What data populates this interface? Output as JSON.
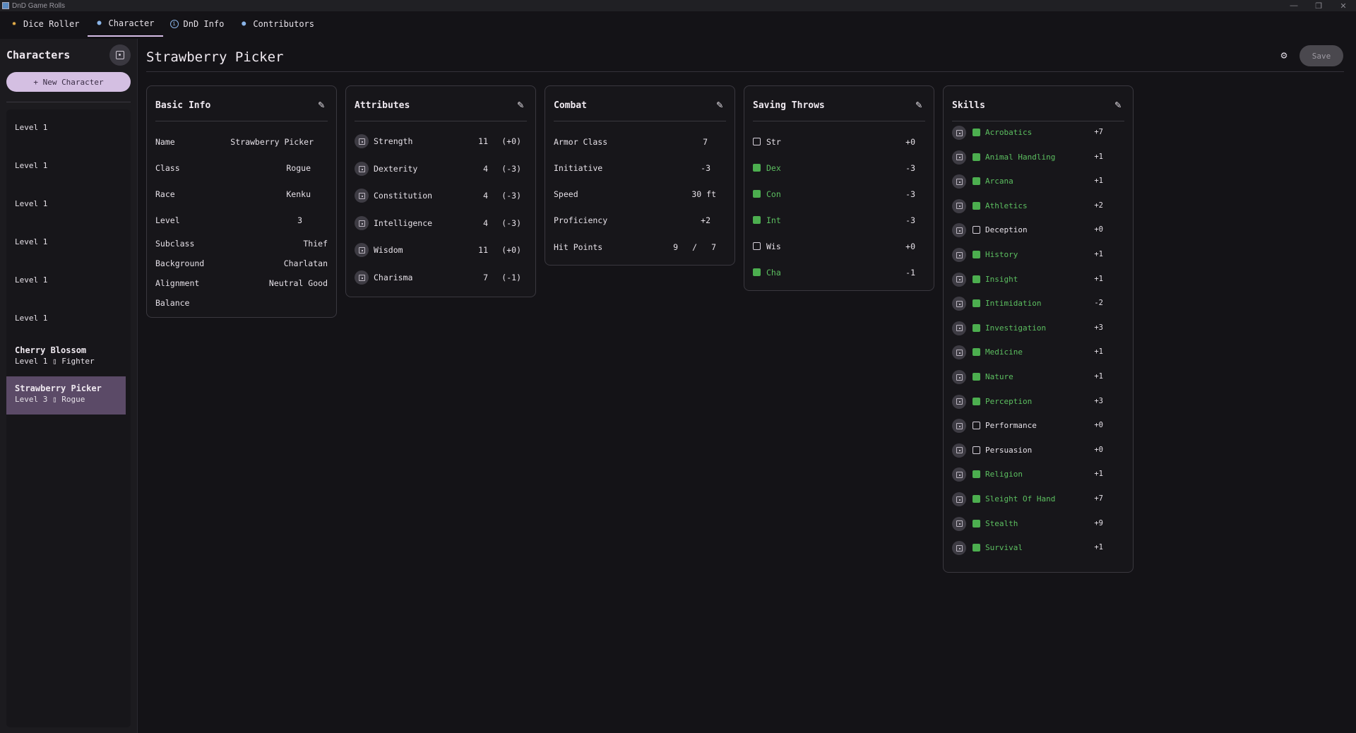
{
  "window": {
    "title": "DnD Game Rolls"
  },
  "tabs": [
    {
      "label": "Dice Roller",
      "icon": "dice-icon"
    },
    {
      "label": "Character",
      "icon": "person-icon",
      "active": true
    },
    {
      "label": "DnD Info",
      "icon": "info-icon"
    },
    {
      "label": "Contributors",
      "icon": "person-icon"
    }
  ],
  "sidebar": {
    "title": "Characters",
    "new_button": "+ New Character",
    "characters": [
      {
        "name": "",
        "sub": "Level 1"
      },
      {
        "name": "",
        "sub": "Level 1"
      },
      {
        "name": "",
        "sub": "Level 1"
      },
      {
        "name": "",
        "sub": "Level 1"
      },
      {
        "name": "",
        "sub": "Level 1"
      },
      {
        "name": "",
        "sub": "Level 1"
      },
      {
        "name": "Cherry Blossom",
        "sub": "Level 1 ▯ Fighter"
      },
      {
        "name": "Strawberry Picker",
        "sub": "Level 3 ▯ Rogue",
        "selected": true
      }
    ]
  },
  "main": {
    "title": "Strawberry Picker",
    "save_label": "Save"
  },
  "basic_info": {
    "title": "Basic Info",
    "rows": [
      {
        "label": "Name",
        "value": "Strawberry Picker"
      },
      {
        "label": "Class",
        "value": "Rogue"
      },
      {
        "label": "Race",
        "value": "Kenku"
      },
      {
        "label": "Level",
        "value": "3"
      },
      {
        "label": "Subclass",
        "value": "Thief"
      },
      {
        "label": "Background",
        "value": "Charlatan"
      },
      {
        "label": "Alignment",
        "value": "Neutral Good"
      },
      {
        "label": "Balance",
        "value": ""
      }
    ]
  },
  "attributes": {
    "title": "Attributes",
    "rows": [
      {
        "label": "Strength",
        "score": "11",
        "mod": "(+0)"
      },
      {
        "label": "Dexterity",
        "score": "4",
        "mod": "(-3)"
      },
      {
        "label": "Constitution",
        "score": "4",
        "mod": "(-3)"
      },
      {
        "label": "Intelligence",
        "score": "4",
        "mod": "(-3)"
      },
      {
        "label": "Wisdom",
        "score": "11",
        "mod": "(+0)"
      },
      {
        "label": "Charisma",
        "score": "7",
        "mod": "(-1)"
      }
    ]
  },
  "combat": {
    "title": "Combat",
    "rows": [
      {
        "label": "Armor Class",
        "value": "7"
      },
      {
        "label": "Initiative",
        "value": "-3"
      },
      {
        "label": "Speed",
        "value": "30 ft"
      },
      {
        "label": "Proficiency",
        "value": "+2"
      }
    ],
    "hit_points": {
      "label": "Hit Points",
      "current": "9",
      "sep": "/",
      "max": "7"
    }
  },
  "saving_throws": {
    "title": "Saving Throws",
    "rows": [
      {
        "label": "Str",
        "value": "+0",
        "proficient": false
      },
      {
        "label": "Dex",
        "value": "-3",
        "proficient": true
      },
      {
        "label": "Con",
        "value": "-3",
        "proficient": true
      },
      {
        "label": "Int",
        "value": "-3",
        "proficient": true
      },
      {
        "label": "Wis",
        "value": "+0",
        "proficient": false
      },
      {
        "label": "Cha",
        "value": "-1",
        "proficient": true
      }
    ]
  },
  "skills": {
    "title": "Skills",
    "rows": [
      {
        "label": "Acrobatics",
        "value": "+7",
        "proficient": true
      },
      {
        "label": "Animal Handling",
        "value": "+1",
        "proficient": true
      },
      {
        "label": "Arcana",
        "value": "+1",
        "proficient": true
      },
      {
        "label": "Athletics",
        "value": "+2",
        "proficient": true
      },
      {
        "label": "Deception",
        "value": "+0",
        "proficient": false
      },
      {
        "label": "History",
        "value": "+1",
        "proficient": true
      },
      {
        "label": "Insight",
        "value": "+1",
        "proficient": true
      },
      {
        "label": "Intimidation",
        "value": "-2",
        "proficient": true
      },
      {
        "label": "Investigation",
        "value": "+3",
        "proficient": true
      },
      {
        "label": "Medicine",
        "value": "+1",
        "proficient": true
      },
      {
        "label": "Nature",
        "value": "+1",
        "proficient": true
      },
      {
        "label": "Perception",
        "value": "+3",
        "proficient": true
      },
      {
        "label": "Performance",
        "value": "+0",
        "proficient": false
      },
      {
        "label": "Persuasion",
        "value": "+0",
        "proficient": false
      },
      {
        "label": "Religion",
        "value": "+1",
        "proficient": true
      },
      {
        "label": "Sleight Of Hand",
        "value": "+7",
        "proficient": true
      },
      {
        "label": "Stealth",
        "value": "+9",
        "proficient": true
      },
      {
        "label": "Survival",
        "value": "+1",
        "proficient": true
      }
    ]
  },
  "colors": {
    "accent": "#d4bfe2",
    "proficient": "#4cae4f",
    "selected_bg": "#5b4a67"
  }
}
